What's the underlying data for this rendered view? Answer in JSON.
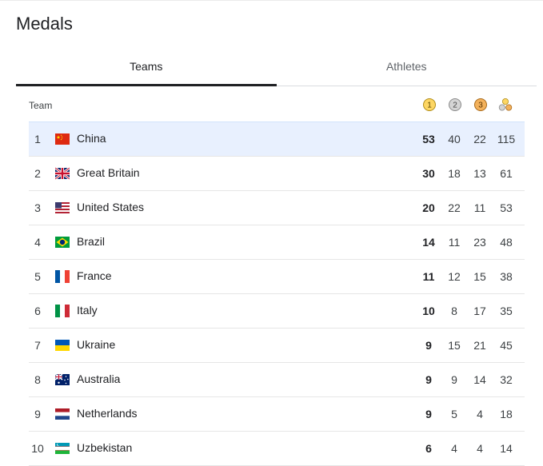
{
  "page": {
    "title": "Medals"
  },
  "tabs": [
    {
      "label": "Teams",
      "active": true
    },
    {
      "label": "Athletes",
      "active": false
    }
  ],
  "table": {
    "header": {
      "team_label": "Team",
      "gold_icon": "gold-medal-icon",
      "silver_icon": "silver-medal-icon",
      "bronze_icon": "bronze-medal-icon",
      "total_icon": "total-medals-icon",
      "gold_digit": "1",
      "silver_digit": "2",
      "bronze_digit": "3"
    },
    "rows": [
      {
        "rank": "1",
        "country": "China",
        "flag": "china-flag-icon",
        "gold": "53",
        "silver": "40",
        "bronze": "22",
        "total": "115"
      },
      {
        "rank": "2",
        "country": "Great Britain",
        "flag": "great-britain-flag-icon",
        "gold": "30",
        "silver": "18",
        "bronze": "13",
        "total": "61"
      },
      {
        "rank": "3",
        "country": "United States",
        "flag": "united-states-flag-icon",
        "gold": "20",
        "silver": "22",
        "bronze": "11",
        "total": "53"
      },
      {
        "rank": "4",
        "country": "Brazil",
        "flag": "brazil-flag-icon",
        "gold": "14",
        "silver": "11",
        "bronze": "23",
        "total": "48"
      },
      {
        "rank": "5",
        "country": "France",
        "flag": "france-flag-icon",
        "gold": "11",
        "silver": "12",
        "bronze": "15",
        "total": "38"
      },
      {
        "rank": "6",
        "country": "Italy",
        "flag": "italy-flag-icon",
        "gold": "10",
        "silver": "8",
        "bronze": "17",
        "total": "35"
      },
      {
        "rank": "7",
        "country": "Ukraine",
        "flag": "ukraine-flag-icon",
        "gold": "9",
        "silver": "15",
        "bronze": "21",
        "total": "45"
      },
      {
        "rank": "8",
        "country": "Australia",
        "flag": "australia-flag-icon",
        "gold": "9",
        "silver": "9",
        "bronze": "14",
        "total": "32"
      },
      {
        "rank": "9",
        "country": "Netherlands",
        "flag": "netherlands-flag-icon",
        "gold": "9",
        "silver": "5",
        "bronze": "4",
        "total": "18"
      },
      {
        "rank": "10",
        "country": "Uzbekistan",
        "flag": "uzbekistan-flag-icon",
        "gold": "6",
        "silver": "4",
        "bronze": "4",
        "total": "14"
      }
    ]
  },
  "colors": {
    "highlight_row": "#e8f0fe",
    "gold": "#fdd663",
    "silver": "#c8c8c8",
    "bronze": "#f3b15b",
    "active_tab_underline": "#202124"
  }
}
